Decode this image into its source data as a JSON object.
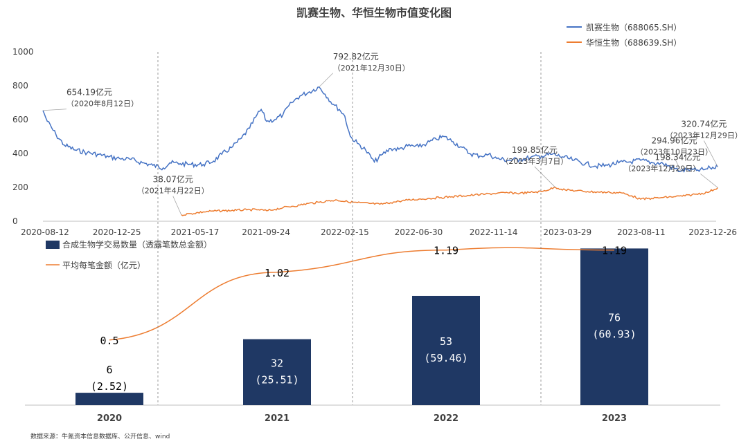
{
  "page": {
    "title": "凯赛生物、华恒生物市值变化图",
    "source_note": "数据来源：牛氪资本信息数据库、公开信息、wind"
  },
  "chart_data": [
    {
      "type": "line",
      "title": "凯赛生物、华恒生物市值变化图",
      "ylim": [
        0,
        1000
      ],
      "yticks": [
        0,
        200,
        400,
        600,
        800,
        1000
      ],
      "xlim": [
        "2020-08-12",
        "2023-12-26"
      ],
      "xticks": [
        "2020-08-12",
        "2020-12-25",
        "2021-05-17",
        "2021-09-24",
        "2022-02-15",
        "2022-06-30",
        "2022-11-14",
        "2023-03-29",
        "2023-08-11",
        "2023-12-26"
      ],
      "legend_position": "top-right",
      "series": [
        {
          "name": "凯赛生物（688065.SH）",
          "color": "#4472c4",
          "points": [
            [
              "2020-08-12",
              654
            ],
            [
              "2020-08-20",
              590
            ],
            [
              "2020-09-05",
              510
            ],
            [
              "2020-09-20",
              450
            ],
            [
              "2020-10-10",
              420
            ],
            [
              "2020-11-01",
              405
            ],
            [
              "2020-11-20",
              395
            ],
            [
              "2020-12-10",
              380
            ],
            [
              "2020-12-30",
              370
            ],
            [
              "2021-01-20",
              365
            ],
            [
              "2021-02-10",
              345
            ],
            [
              "2021-03-01",
              330
            ],
            [
              "2021-03-20",
              315
            ],
            [
              "2021-04-01",
              345
            ],
            [
              "2021-04-20",
              340
            ],
            [
              "2021-05-10",
              335
            ],
            [
              "2021-06-01",
              335
            ],
            [
              "2021-06-20",
              355
            ],
            [
              "2021-07-05",
              395
            ],
            [
              "2021-07-25",
              440
            ],
            [
              "2021-08-10",
              490
            ],
            [
              "2021-08-25",
              550
            ],
            [
              "2021-09-05",
              615
            ],
            [
              "2021-09-15",
              660
            ],
            [
              "2021-09-25",
              590
            ],
            [
              "2021-10-10",
              600
            ],
            [
              "2021-10-25",
              630
            ],
            [
              "2021-11-10",
              700
            ],
            [
              "2021-11-25",
              740
            ],
            [
              "2021-12-10",
              760
            ],
            [
              "2021-12-30",
              792.82
            ],
            [
              "2022-01-10",
              750
            ],
            [
              "2022-01-25",
              690
            ],
            [
              "2022-02-05",
              660
            ],
            [
              "2022-02-15",
              620
            ],
            [
              "2022-02-25",
              500
            ],
            [
              "2022-03-10",
              460
            ],
            [
              "2022-03-25",
              420
            ],
            [
              "2022-04-10",
              350
            ],
            [
              "2022-04-25",
              395
            ],
            [
              "2022-05-10",
              430
            ],
            [
              "2022-05-25",
              425
            ],
            [
              "2022-06-10",
              445
            ],
            [
              "2022-06-30",
              440
            ],
            [
              "2022-07-15",
              460
            ],
            [
              "2022-08-01",
              485
            ],
            [
              "2022-08-15",
              500
            ],
            [
              "2022-09-01",
              470
            ],
            [
              "2022-09-15",
              440
            ],
            [
              "2022-10-01",
              400
            ],
            [
              "2022-10-20",
              385
            ],
            [
              "2022-11-05",
              395
            ],
            [
              "2022-11-20",
              370
            ],
            [
              "2022-12-10",
              360
            ],
            [
              "2023-01-01",
              365
            ],
            [
              "2023-01-20",
              375
            ],
            [
              "2023-02-10",
              385
            ],
            [
              "2023-03-01",
              395
            ],
            [
              "2023-03-20",
              380
            ],
            [
              "2023-04-10",
              360
            ],
            [
              "2023-05-01",
              340
            ],
            [
              "2023-05-20",
              325
            ],
            [
              "2023-06-10",
              330
            ],
            [
              "2023-07-01",
              345
            ],
            [
              "2023-07-20",
              350
            ],
            [
              "2023-08-10",
              360
            ],
            [
              "2023-09-01",
              345
            ],
            [
              "2023-09-20",
              340
            ],
            [
              "2023-10-23",
              294.96
            ],
            [
              "2023-11-05",
              305
            ],
            [
              "2023-11-20",
              300
            ],
            [
              "2023-12-05",
              305
            ],
            [
              "2023-12-15",
              315
            ],
            [
              "2023-12-29",
              320.74
            ]
          ]
        },
        {
          "name": "华恒生物（688639.SH）",
          "color": "#ed7d31",
          "points": [
            [
              "2021-04-22",
              38.07
            ],
            [
              "2021-05-10",
              45
            ],
            [
              "2021-06-01",
              55
            ],
            [
              "2021-06-20",
              60
            ],
            [
              "2021-07-10",
              62
            ],
            [
              "2021-08-01",
              65
            ],
            [
              "2021-08-20",
              67
            ],
            [
              "2021-09-10",
              68
            ],
            [
              "2021-09-25",
              62
            ],
            [
              "2021-10-10",
              70
            ],
            [
              "2021-10-25",
              80
            ],
            [
              "2021-11-10",
              88
            ],
            [
              "2021-11-25",
              95
            ],
            [
              "2021-12-10",
              105
            ],
            [
              "2021-12-30",
              112
            ],
            [
              "2022-01-15",
              120
            ],
            [
              "2022-02-01",
              125
            ],
            [
              "2022-02-20",
              115
            ],
            [
              "2022-03-10",
              110
            ],
            [
              "2022-04-01",
              105
            ],
            [
              "2022-04-20",
              100
            ],
            [
              "2022-05-10",
              110
            ],
            [
              "2022-05-25",
              118
            ],
            [
              "2022-06-10",
              125
            ],
            [
              "2022-06-30",
              130
            ],
            [
              "2022-07-20",
              135
            ],
            [
              "2022-08-10",
              140
            ],
            [
              "2022-08-30",
              145
            ],
            [
              "2022-09-20",
              150
            ],
            [
              "2022-10-10",
              155
            ],
            [
              "2022-10-30",
              160
            ],
            [
              "2022-11-20",
              165
            ],
            [
              "2022-12-10",
              168
            ],
            [
              "2023-01-01",
              165
            ],
            [
              "2023-01-20",
              170
            ],
            [
              "2023-02-10",
              175
            ],
            [
              "2023-03-07",
              199.85
            ],
            [
              "2023-03-25",
              185
            ],
            [
              "2023-04-15",
              180
            ],
            [
              "2023-05-05",
              175
            ],
            [
              "2023-05-25",
              172
            ],
            [
              "2023-06-15",
              170
            ],
            [
              "2023-07-05",
              168
            ],
            [
              "2023-07-25",
              150
            ],
            [
              "2023-08-10",
              130
            ],
            [
              "2023-08-30",
              135
            ],
            [
              "2023-09-20",
              140
            ],
            [
              "2023-10-10",
              145
            ],
            [
              "2023-10-30",
              150
            ],
            [
              "2023-11-20",
              160
            ],
            [
              "2023-12-10",
              170
            ],
            [
              "2023-12-29",
              198.34
            ]
          ]
        }
      ],
      "annotations": [
        {
          "series": 0,
          "date": "2020-08-12",
          "value": 654.19,
          "label": "654.19亿元",
          "sub": "（2020年8月12日）"
        },
        {
          "series": 0,
          "date": "2021-12-30",
          "value": 792.82,
          "label": "792.82亿元",
          "sub": "（2021年12月30日）"
        },
        {
          "series": 0,
          "date": "2023-10-23",
          "value": 294.96,
          "label": "294.96亿元",
          "sub": "（2023年10月23日）"
        },
        {
          "series": 0,
          "date": "2023-12-29",
          "value": 320.74,
          "label": "320.74亿元",
          "sub": "（2023年12月29日）"
        },
        {
          "series": 1,
          "date": "2021-04-22",
          "value": 38.07,
          "label": "38.07亿元",
          "sub": "（2021年4月22日）"
        },
        {
          "series": 1,
          "date": "2023-03-07",
          "value": 199.85,
          "label": "199.85亿元",
          "sub": "（2023年3月7日）"
        },
        {
          "series": 1,
          "date": "2023-12-29",
          "value": 198.34,
          "label": "198.34亿元",
          "sub": "（2023年12月29日）"
        }
      ],
      "year_dividers": [
        "2021-05-01",
        "2022-02-20",
        "2023-03-25"
      ]
    },
    {
      "type": "bar",
      "categories": [
        "2020",
        "2021",
        "2022",
        "2023"
      ],
      "series": [
        {
          "name": "合成生物学交易数量（透露笔数总金额）",
          "color": "#1f3864",
          "counts": [
            6,
            32,
            53,
            76
          ],
          "amounts": [
            "(2.52)",
            "(25.51)",
            "(59.46)",
            "(60.93)"
          ]
        },
        {
          "name": "平均每笔金额（亿元）",
          "type": "line",
          "color": "#ed7d31",
          "values": [
            0.5,
            1.02,
            1.19,
            1.19
          ],
          "labels": [
            "0.5",
            "1.02",
            "1.19",
            "1.19"
          ]
        }
      ],
      "ylim": [
        0,
        80
      ]
    }
  ]
}
